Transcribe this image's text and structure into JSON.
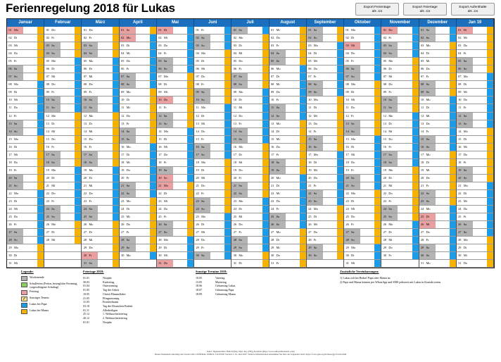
{
  "title": "Ferienregelung 2018 für Lukas",
  "export_buttons": [
    {
      "line1": "Export Ferientage",
      "line2": "als .ics"
    },
    {
      "line1": "Export Feiertage",
      "line2": "als .ics"
    },
    {
      "line1": "Export Aufenthalte",
      "line2": "als .ics"
    }
  ],
  "months": [
    "Januar",
    "Februar",
    "März",
    "April",
    "Mai",
    "Juni",
    "Juli",
    "August",
    "September",
    "Oktober",
    "November",
    "Dezember",
    "Jan 19"
  ],
  "colors": {
    "weekend": "#b4b4b4",
    "holiday": "#e8a0a0",
    "school_holiday": "#8ad060",
    "papa": "#1c9ce8",
    "mama": "#f7b200",
    "header": "#1b6fbc"
  },
  "legend": {
    "title": "Legende:",
    "items": [
      {
        "key": "weekend",
        "text": "Wochenende"
      },
      {
        "key": "school",
        "text": "Schulferien (Ferien, bewegliche Ferientag, vorgeschlagene Schultag)"
      },
      {
        "key": "holiday",
        "text": "Feiertag"
      },
      {
        "key": "special",
        "text": "Sonstiger Termin"
      },
      {
        "key": "papa",
        "text": "Lukas bei Papa"
      },
      {
        "key": "mama",
        "text": "Lukas bei Mama"
      }
    ]
  },
  "holidays": {
    "title": "Feiertage 2018:",
    "rows": [
      {
        "date": "01.01",
        "name": "Neujahr"
      },
      {
        "date": "30.03",
        "name": "Karfreitag"
      },
      {
        "date": "01.04",
        "name": "Ostersonntag"
      },
      {
        "date": "01.05",
        "name": "Tag der Arbeit"
      },
      {
        "date": "10.05",
        "name": "Christi Himmelfahrt"
      },
      {
        "date": "21.05",
        "name": "Pfingstmontag"
      },
      {
        "date": "31.05",
        "name": "Fronleichnam"
      },
      {
        "date": "03.10",
        "name": "Tag der Deutschen Einheit"
      },
      {
        "date": "01.11",
        "name": "Allerheiligen"
      },
      {
        "date": "25.12",
        "name": "1. Weihnachtsfeiertag"
      },
      {
        "date": "26.12",
        "name": "2. Weihnachtsfeiertag"
      },
      {
        "date": "01.01",
        "name": "Neujahr"
      }
    ]
  },
  "special": {
    "title": "Sonstige Termine 2018:",
    "rows": [
      {
        "date": "10.05",
        "name": "Vatertag"
      },
      {
        "date": "13.05",
        "name": "Muttertag"
      },
      {
        "date": "18.06",
        "name": "Geburtstag Lukas"
      },
      {
        "date": "18.07",
        "name": "Geburtstag Papa"
      },
      {
        "date": "18.09",
        "name": "Geburtstag Mama"
      }
    ]
  },
  "notes": {
    "title": "Zusätzliche Vereinbarungen:",
    "rows": [
      "1) Lukas ruft bei Bedarf Papa oder Mama an",
      "2) Papa und Mama können per WhatsApp und SMS jederzeit mit Lukas in Kontakt treten"
    ]
  },
  "footer": {
    "line1": "Autor: Ingenieurbüro Dittrich (Ing. Dipl. Ing. (FH)), Koblenz (https://www.umweltberaterin.com)",
    "line2": "Dieses Dokument unterliegt der Lizenz GNU GENERAL PUBLIC LICENSE Version 3, 29. Juni 2007. Weitere Informationen entnehmen Sie bitte der folgenden Seite: https://www.gnu.org/licenses/gpl-3.0.de.html"
  }
}
